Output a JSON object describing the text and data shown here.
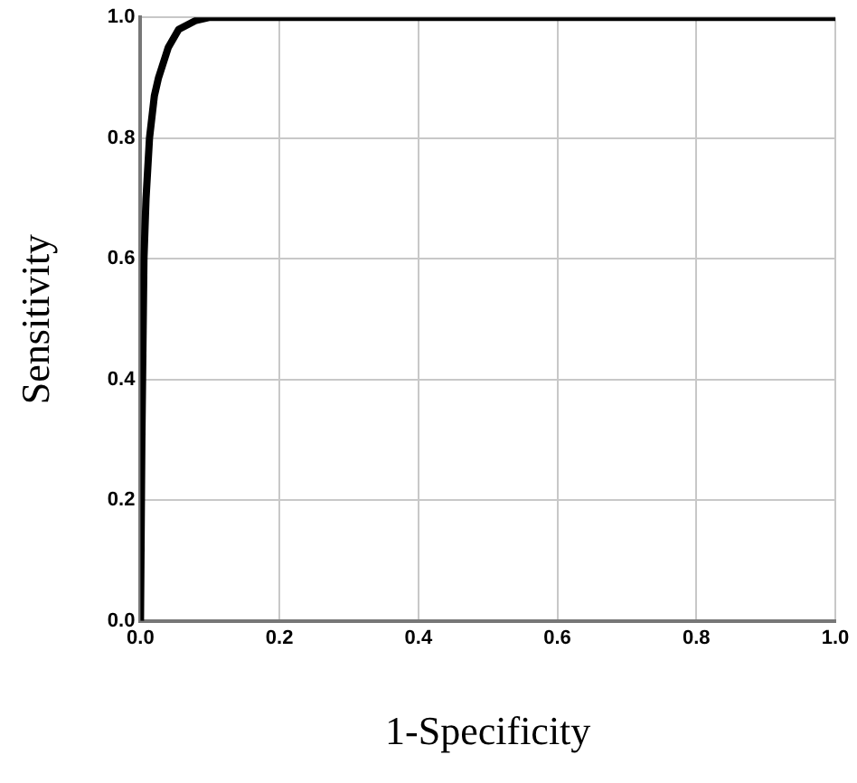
{
  "chart_data": {
    "type": "line",
    "xlabel": "1-Specificity",
    "ylabel": "Sensitivity",
    "x": [
      0,
      0.002,
      0.005,
      0.008,
      0.013,
      0.02,
      0.026,
      0.04,
      0.055,
      0.08,
      0.1,
      1
    ],
    "series": [
      {
        "color": "#000000",
        "values": [
          0,
          0.3,
          0.6,
          0.7,
          0.8,
          0.87,
          0.9,
          0.95,
          0.98,
          0.995,
          1,
          1
        ]
      }
    ],
    "xlim": [
      0,
      1
    ],
    "ylim": [
      0,
      1
    ],
    "xticks": [
      {
        "value": 0,
        "label": "0.0"
      },
      0.2,
      0.4,
      0.6,
      0.8,
      {
        "value": 1,
        "label": "1.0"
      }
    ],
    "yticks": [
      {
        "value": 0,
        "label": "0.0"
      },
      0.2,
      0.4,
      0.6,
      0.8,
      {
        "value": 1,
        "label": "1.0"
      }
    ],
    "grid": true,
    "legend": false,
    "marker": "none",
    "line_style": "solid"
  }
}
